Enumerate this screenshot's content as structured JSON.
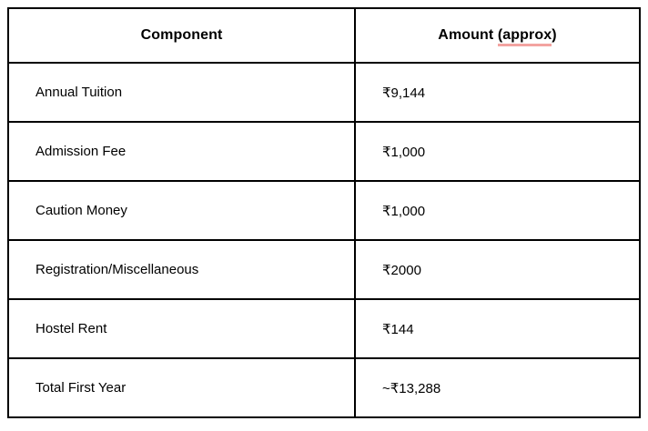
{
  "table": {
    "header": {
      "component_label": "Component",
      "amount_prefix": "Amount ",
      "amount_underlined": "(approx",
      "amount_suffix": ")"
    },
    "rows": [
      {
        "component": "Annual Tuition",
        "amount": "₹9,144"
      },
      {
        "component": "Admission Fee",
        "amount": "₹1,000"
      },
      {
        "component": "Caution Money",
        "amount": "₹1,000"
      },
      {
        "component": "Registration/Miscellaneous",
        "amount": "₹2000"
      },
      {
        "component": "Hostel Rent",
        "amount": "₹144"
      },
      {
        "component": "Total First Year",
        "amount": "~₹13,288"
      }
    ],
    "colors": {
      "border": "#000000",
      "text": "#000000",
      "spellcheck_underline": "#f3a3a0",
      "background": "#ffffff"
    }
  }
}
